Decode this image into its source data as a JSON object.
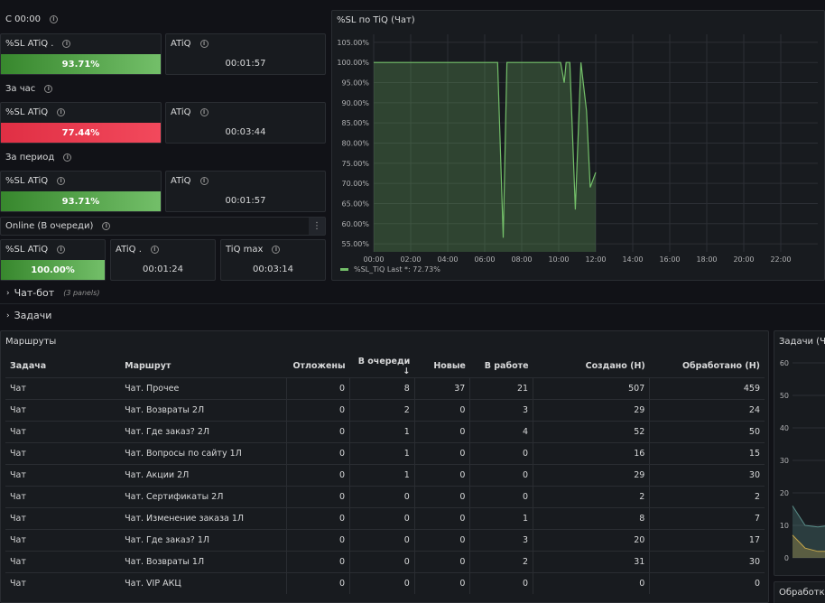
{
  "sections": {
    "since_midnight": "С 00:00",
    "per_hour": "За час",
    "per_period": "За период",
    "online": "Online (В очереди)",
    "chatbot": "Чат-бот",
    "chatbot_sub": "(3 panels)",
    "tasks": "Задачи"
  },
  "stats": {
    "row1": {
      "sl_label": "%SL ATiQ .",
      "sl_value": "93.71%",
      "atiq_label": "ATiQ",
      "atiq_value": "00:01:57"
    },
    "row2": {
      "sl_label": "%SL ATiQ",
      "sl_value": "77.44%",
      "atiq_label": "ATiQ",
      "atiq_value": "00:03:44"
    },
    "row3": {
      "sl_label": "%SL ATiQ",
      "sl_value": "93.71%",
      "atiq_label": "ATiQ",
      "atiq_value": "00:01:57"
    },
    "online": {
      "sl_label": "%SL ATiQ",
      "sl_value": "100.00%",
      "atiq_label": "ATiQ .",
      "atiq_value": "00:01:24",
      "tiqmax_label": "TiQ max",
      "tiqmax_value": "00:03:14"
    }
  },
  "sl_chart": {
    "title": "%SL по TiQ (Чат)",
    "legend": "%SL_TiQ  Last *: 72.73%",
    "series_color": "#73bf69"
  },
  "chart_data": [
    {
      "type": "line",
      "title": "%SL по TiQ (Чат)",
      "y_ticks": [
        "55.00%",
        "60.00%",
        "65.00%",
        "70.00%",
        "75.00%",
        "80.00%",
        "85.00%",
        "90.00%",
        "95.00%",
        "100.00%",
        "105.00%"
      ],
      "x_ticks": [
        "00:00",
        "02:00",
        "04:00",
        "06:00",
        "08:00",
        "10:00",
        "12:00",
        "14:00",
        "16:00",
        "18:00",
        "20:00",
        "22:00"
      ],
      "ylim": [
        53,
        107
      ],
      "xlim": [
        0,
        24
      ],
      "grid": true,
      "legend_position": "bottom-left",
      "series": [
        {
          "name": "%SL_TiQ",
          "x": [
            0,
            6.7,
            7.0,
            7.2,
            10.1,
            10.3,
            10.4,
            10.6,
            10.9,
            11.2,
            11.5,
            11.7,
            12.0
          ],
          "y": [
            100,
            100,
            56.5,
            100,
            100,
            95,
            100,
            100,
            63.5,
            100,
            88,
            69,
            72.73
          ]
        }
      ]
    },
    {
      "type": "table",
      "title": "Маршруты",
      "columns": [
        "Задача",
        "Маршрут",
        "Отложены",
        "В очереди ↓",
        "Новые",
        "В работе",
        "Создано (Н)",
        "Обработано (Н)"
      ],
      "rows": [
        [
          "Чат",
          "Чат. Прочее",
          "0",
          "8",
          "37",
          "21",
          "507",
          "459"
        ],
        [
          "Чат",
          "Чат. Возвраты 2Л",
          "0",
          "2",
          "0",
          "3",
          "29",
          "24"
        ],
        [
          "Чат",
          "Чат. Где заказ? 2Л",
          "0",
          "1",
          "0",
          "4",
          "52",
          "50"
        ],
        [
          "Чат",
          "Чат. Вопросы по сайту 1Л",
          "0",
          "1",
          "0",
          "0",
          "16",
          "15"
        ],
        [
          "Чат",
          "Чат. Акции 2Л",
          "0",
          "1",
          "0",
          "0",
          "29",
          "30"
        ],
        [
          "Чат",
          "Чат. Сертификаты 2Л",
          "0",
          "0",
          "0",
          "0",
          "2",
          "2"
        ],
        [
          "Чат",
          "Чат. Изменение заказа 1Л",
          "0",
          "0",
          "0",
          "1",
          "8",
          "7"
        ],
        [
          "Чат",
          "Чат. Где заказ? 1Л",
          "0",
          "0",
          "0",
          "3",
          "20",
          "17"
        ],
        [
          "Чат",
          "Чат. Возвраты 1Л",
          "0",
          "0",
          "0",
          "2",
          "31",
          "30"
        ],
        [
          "Чат",
          "Чат. VIP АКЦ",
          "0",
          "0",
          "0",
          "0",
          "0",
          "0"
        ]
      ]
    },
    {
      "type": "area",
      "title": "Задачи (Ча",
      "y_ticks": [
        "0",
        "10",
        "20",
        "30",
        "40",
        "50",
        "60"
      ],
      "ylim": [
        0,
        60
      ],
      "series": [
        {
          "x": [
            0,
            1,
            2,
            3
          ],
          "y": [
            16,
            10,
            9.5,
            10
          ]
        },
        {
          "x": [
            0,
            1,
            2,
            3
          ],
          "y": [
            7,
            3,
            2,
            2
          ]
        }
      ]
    }
  ],
  "routes": {
    "title": "Маршруты"
  },
  "tasks_chart": {
    "title": "Задачи (Ча"
  },
  "processed_panel": {
    "title": "Обработка"
  }
}
